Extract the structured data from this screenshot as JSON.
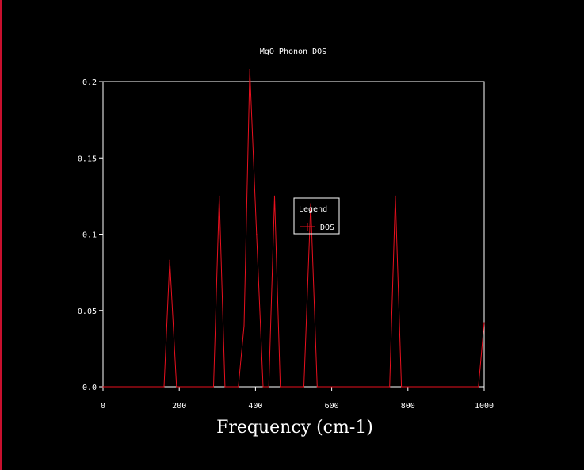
{
  "chart_data": {
    "type": "line",
    "title": "MgO Phonon DOS",
    "xlabel": "Frequency (cm-1)",
    "ylabel": "",
    "xlim": [
      0,
      1000
    ],
    "ylim": [
      0,
      0.2
    ],
    "xticks": [
      0,
      200,
      400,
      600,
      800,
      1000
    ],
    "xtick_labels": [
      "0",
      "200",
      "400",
      "600",
      "800",
      "1000"
    ],
    "yticks": [
      0,
      0.05,
      0.1,
      0.15,
      0.2
    ],
    "ytick_labels": [
      "0.0",
      "0.05",
      "0.1",
      "0.15",
      "0.2"
    ],
    "grid": false,
    "legend": {
      "title": "Legend",
      "placement": "center"
    },
    "series": [
      {
        "name": "DOS",
        "color": "#e8101e",
        "x": [
          0,
          160,
          175,
          193,
          290,
          305,
          320,
          355,
          370,
          385,
          403,
          420,
          435,
          450,
          465,
          527,
          545,
          562,
          752,
          767,
          783,
          985,
          1000
        ],
        "y": [
          0,
          0,
          0.083,
          0,
          0,
          0.125,
          0,
          0,
          0.04,
          0.208,
          0.1,
          0,
          0,
          0.125,
          0,
          0,
          0.12,
          0,
          0,
          0.125,
          0,
          0,
          0.042
        ]
      }
    ]
  },
  "colors": {
    "background": "#000000",
    "axis": "#ffffff",
    "series": "#e8101e",
    "edge": "#c8102e"
  }
}
